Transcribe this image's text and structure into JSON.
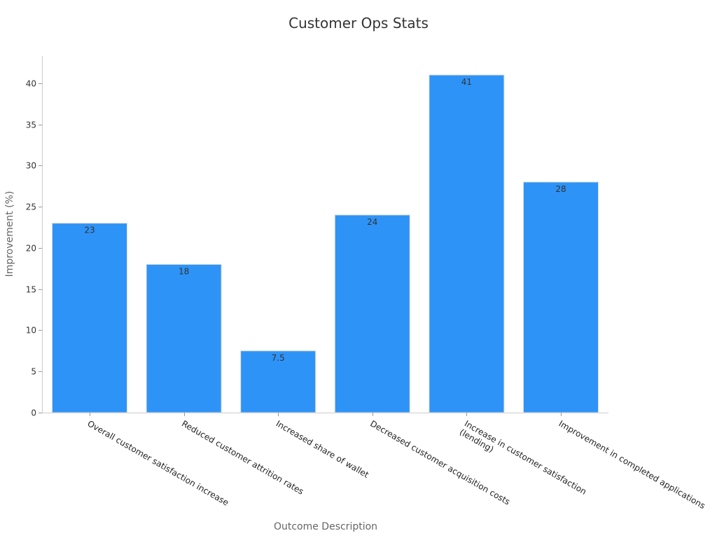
{
  "chart_data": {
    "type": "bar",
    "title": "Customer Ops Stats",
    "xlabel": "Outcome Description",
    "ylabel": "Improvement (%)",
    "categories": [
      [
        "Overall customer satisfaction increase"
      ],
      [
        "Reduced customer attrition rates"
      ],
      [
        "Increased share of wallet"
      ],
      [
        "Decreased customer acquisition costs"
      ],
      [
        "Increase in customer satisfaction",
        "(lending)"
      ],
      [
        "Improvement in completed applications"
      ]
    ],
    "values": [
      23,
      18,
      7.5,
      24,
      41,
      28
    ],
    "value_labels": [
      "23",
      "18",
      "7.5",
      "24",
      "41",
      "28"
    ],
    "yticks": [
      0,
      5,
      10,
      15,
      20,
      25,
      30,
      35,
      40
    ],
    "ylim": [
      0,
      43.3
    ],
    "grid": false,
    "bar_color": "#2e93f7"
  }
}
